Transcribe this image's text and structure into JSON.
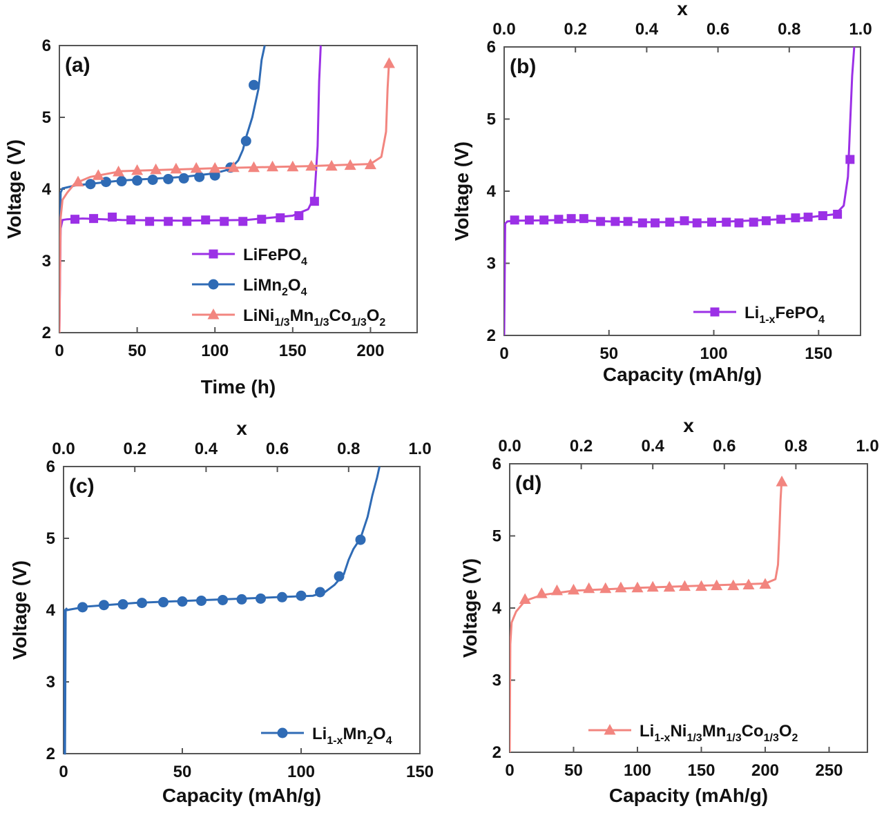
{
  "colors": {
    "LiFePO4": "#9b30e6",
    "LiMn2O4": "#2f6bb5",
    "NMC": "#f2857f"
  },
  "chart_data": [
    {
      "panel": "(a)",
      "type": "line",
      "xlabel": "Time (h)",
      "ylabel": "Voltage (V)",
      "xlim": [
        0,
        230
      ],
      "ylim": [
        2,
        6
      ],
      "xticks": [
        "0",
        "50",
        "100",
        "150",
        "200"
      ],
      "yticks": [
        "2",
        "3",
        "4",
        "5",
        "6"
      ],
      "legend": {
        "position": "bottom-right",
        "entries": [
          {
            "base": "LiFePO",
            "sub": "4",
            "parts": [
              [
                "LiFePO",
                ""
              ],
              [
                "4",
                "s"
              ]
            ]
          },
          {
            "base": "LiMn2O4",
            "parts": [
              [
                "LiMn",
                ""
              ],
              [
                "2",
                "s"
              ],
              [
                "O",
                ""
              ],
              [
                "4",
                "s"
              ]
            ]
          },
          {
            "base": "LiNi1/3Mn1/3Co1/3O2",
            "parts": [
              [
                "LiNi",
                ""
              ],
              [
                "1/3",
                "s"
              ],
              [
                "Mn",
                ""
              ],
              [
                "1/3",
                "s"
              ],
              [
                "Co",
                ""
              ],
              [
                "1/3",
                "s"
              ],
              [
                "O",
                ""
              ],
              [
                "2",
                "s"
              ]
            ]
          }
        ]
      },
      "series": [
        {
          "key": "LiFePO4",
          "marker": "square",
          "x": [
            0,
            0.8,
            2,
            5,
            15,
            40,
            80,
            120,
            150,
            160,
            164,
            166,
            167,
            168
          ],
          "y": [
            2.0,
            3.45,
            3.57,
            3.58,
            3.59,
            3.57,
            3.56,
            3.57,
            3.63,
            3.72,
            3.9,
            4.6,
            5.5,
            6.0
          ],
          "mx": [
            10,
            22,
            34,
            46,
            58,
            70,
            82,
            94,
            106,
            118,
            130,
            142,
            154,
            164
          ],
          "my": [
            3.58,
            3.59,
            3.61,
            3.57,
            3.55,
            3.55,
            3.55,
            3.57,
            3.55,
            3.55,
            3.58,
            3.6,
            3.63,
            3.83
          ]
        },
        {
          "key": "LiMn2O4",
          "marker": "circle",
          "x": [
            0,
            0.8,
            2,
            10,
            40,
            80,
            100,
            110,
            115,
            118,
            120,
            124,
            128,
            130,
            132
          ],
          "y": [
            2.7,
            3.95,
            4.01,
            4.05,
            4.12,
            4.17,
            4.22,
            4.28,
            4.4,
            4.55,
            4.72,
            5.0,
            5.4,
            5.8,
            6.0
          ],
          "mx": [
            20,
            30,
            40,
            50,
            60,
            70,
            80,
            90,
            100,
            110,
            120,
            125
          ],
          "my": [
            4.07,
            4.1,
            4.11,
            4.12,
            4.13,
            4.14,
            4.15,
            4.17,
            4.19,
            4.3,
            4.67,
            5.45
          ]
        },
        {
          "key": "NMC",
          "marker": "triangle",
          "x": [
            0,
            0.8,
            2,
            5,
            10,
            20,
            40,
            100,
            160,
            200,
            207,
            210,
            211,
            212
          ],
          "y": [
            2.0,
            3.6,
            3.85,
            3.95,
            4.08,
            4.17,
            4.25,
            4.29,
            4.32,
            4.35,
            4.45,
            4.8,
            5.4,
            5.8
          ],
          "mx": [
            12,
            25,
            38,
            50,
            62,
            75,
            88,
            100,
            112,
            125,
            137,
            150,
            162,
            175,
            187,
            200,
            212
          ],
          "my": [
            4.1,
            4.19,
            4.24,
            4.26,
            4.27,
            4.28,
            4.29,
            4.29,
            4.3,
            4.3,
            4.31,
            4.31,
            4.32,
            4.32,
            4.33,
            4.34,
            5.75
          ]
        }
      ]
    },
    {
      "panel": "(b)",
      "type": "line",
      "xlabel": "Capacity (mAh/g)",
      "ylabel": "Voltage (V)",
      "x2label": "x",
      "xlim": [
        0,
        170
      ],
      "ylim": [
        2,
        6
      ],
      "xticks": [
        "0",
        "50",
        "100",
        "150"
      ],
      "yticks": [
        "2",
        "3",
        "4",
        "5",
        "6"
      ],
      "x2ticks": [
        "0.0",
        "0.2",
        "0.4",
        "0.6",
        "0.8",
        "1.0"
      ],
      "legend": {
        "position": "bottom-right",
        "entries": [
          {
            "parts": [
              [
                "Li",
                ""
              ],
              [
                "1-x",
                "s"
              ],
              [
                "FePO",
                ""
              ],
              [
                "4",
                "s"
              ]
            ]
          }
        ]
      },
      "series": [
        {
          "key": "LiFePO4",
          "marker": "square",
          "x": [
            0,
            0.5,
            1.5,
            5,
            30,
            60,
            100,
            140,
            158,
            162,
            164,
            165,
            166,
            167
          ],
          "y": [
            2.0,
            3.55,
            3.58,
            3.59,
            3.6,
            3.57,
            3.57,
            3.62,
            3.68,
            3.8,
            4.2,
            4.9,
            5.6,
            6.0
          ],
          "mx": [
            5,
            12,
            19,
            26,
            32,
            38,
            46,
            53,
            59,
            66,
            72,
            79,
            86,
            92,
            99,
            106,
            112,
            119,
            125,
            132,
            139,
            145,
            152,
            159,
            165
          ],
          "my": [
            3.6,
            3.6,
            3.6,
            3.61,
            3.62,
            3.62,
            3.58,
            3.58,
            3.58,
            3.56,
            3.56,
            3.57,
            3.59,
            3.56,
            3.57,
            3.57,
            3.56,
            3.57,
            3.59,
            3.61,
            3.63,
            3.64,
            3.66,
            3.68,
            4.44
          ]
        }
      ]
    },
    {
      "panel": "(c)",
      "type": "line",
      "xlabel": "Capacity (mAh/g)",
      "ylabel": "Voltage (V)",
      "x2label": "x",
      "xlim": [
        0,
        150
      ],
      "ylim": [
        2,
        6
      ],
      "xticks": [
        "0",
        "50",
        "100",
        "150"
      ],
      "yticks": [
        "2",
        "3",
        "4",
        "5",
        "6"
      ],
      "x2ticks": [
        "0.0",
        "0.2",
        "0.4",
        "0.6",
        "0.8",
        "1.0"
      ],
      "legend": {
        "position": "bottom-right",
        "entries": [
          {
            "parts": [
              [
                "Li",
                ""
              ],
              [
                "1-x",
                "s"
              ],
              [
                "Mn",
                ""
              ],
              [
                "2",
                "s"
              ],
              [
                "O",
                ""
              ],
              [
                "4",
                "s"
              ]
            ]
          }
        ]
      },
      "series": [
        {
          "key": "LiMn2O4",
          "marker": "circle",
          "x": [
            0,
            0.3,
            0.6,
            0.9,
            1.2,
            1.5,
            3,
            10,
            30,
            60,
            90,
            105,
            110,
            114,
            118,
            120,
            122,
            125,
            128,
            130,
            132,
            133
          ],
          "y": [
            2.0,
            4.0,
            2.0,
            4.0,
            4.02,
            4.0,
            4.01,
            4.05,
            4.1,
            4.14,
            4.18,
            4.2,
            4.25,
            4.35,
            4.5,
            4.7,
            4.85,
            5.0,
            5.3,
            5.6,
            5.85,
            6.0
          ],
          "mx": [
            8,
            17,
            25,
            33,
            42,
            50,
            58,
            67,
            75,
            83,
            92,
            100,
            108,
            116,
            125
          ],
          "my": [
            4.04,
            4.07,
            4.08,
            4.1,
            4.11,
            4.12,
            4.13,
            4.14,
            4.15,
            4.16,
            4.18,
            4.2,
            4.25,
            4.47,
            4.98
          ]
        }
      ]
    },
    {
      "panel": "(d)",
      "type": "line",
      "xlabel": "Capacity (mAh/g)",
      "ylabel": "Voltage (V)",
      "x2label": "x",
      "xlim": [
        0,
        280
      ],
      "ylim": [
        2,
        6
      ],
      "xticks": [
        "0",
        "50",
        "100",
        "150",
        "200",
        "250"
      ],
      "yticks": [
        "2",
        "3",
        "4",
        "5",
        "6"
      ],
      "x2ticks": [
        "0.0",
        "0.2",
        "0.4",
        "0.6",
        "0.8",
        "1.0"
      ],
      "legend": {
        "position": "bottom-right",
        "entries": [
          {
            "parts": [
              [
                "Li",
                ""
              ],
              [
                "1-x",
                "s"
              ],
              [
                "Ni",
                ""
              ],
              [
                "1/3",
                "s"
              ],
              [
                "Mn",
                ""
              ],
              [
                "1/3",
                "s"
              ],
              [
                "Co",
                ""
              ],
              [
                "1/3",
                "s"
              ],
              [
                "O",
                ""
              ],
              [
                "2",
                "s"
              ]
            ]
          }
        ]
      },
      "series": [
        {
          "key": "NMC",
          "marker": "triangle",
          "x": [
            0,
            0.5,
            1.5,
            5,
            12,
            25,
            50,
            100,
            150,
            200,
            208,
            210,
            211,
            212,
            213
          ],
          "y": [
            2.0,
            3.5,
            3.8,
            3.95,
            4.1,
            4.18,
            4.24,
            4.28,
            4.31,
            4.34,
            4.4,
            4.6,
            5.0,
            5.5,
            5.8
          ],
          "mx": [
            12,
            25,
            37,
            50,
            62,
            75,
            87,
            100,
            112,
            125,
            137,
            150,
            162,
            175,
            187,
            200,
            213
          ],
          "my": [
            4.12,
            4.2,
            4.24,
            4.25,
            4.27,
            4.27,
            4.28,
            4.28,
            4.29,
            4.29,
            4.3,
            4.3,
            4.31,
            4.31,
            4.32,
            4.33,
            5.75
          ]
        }
      ]
    }
  ]
}
